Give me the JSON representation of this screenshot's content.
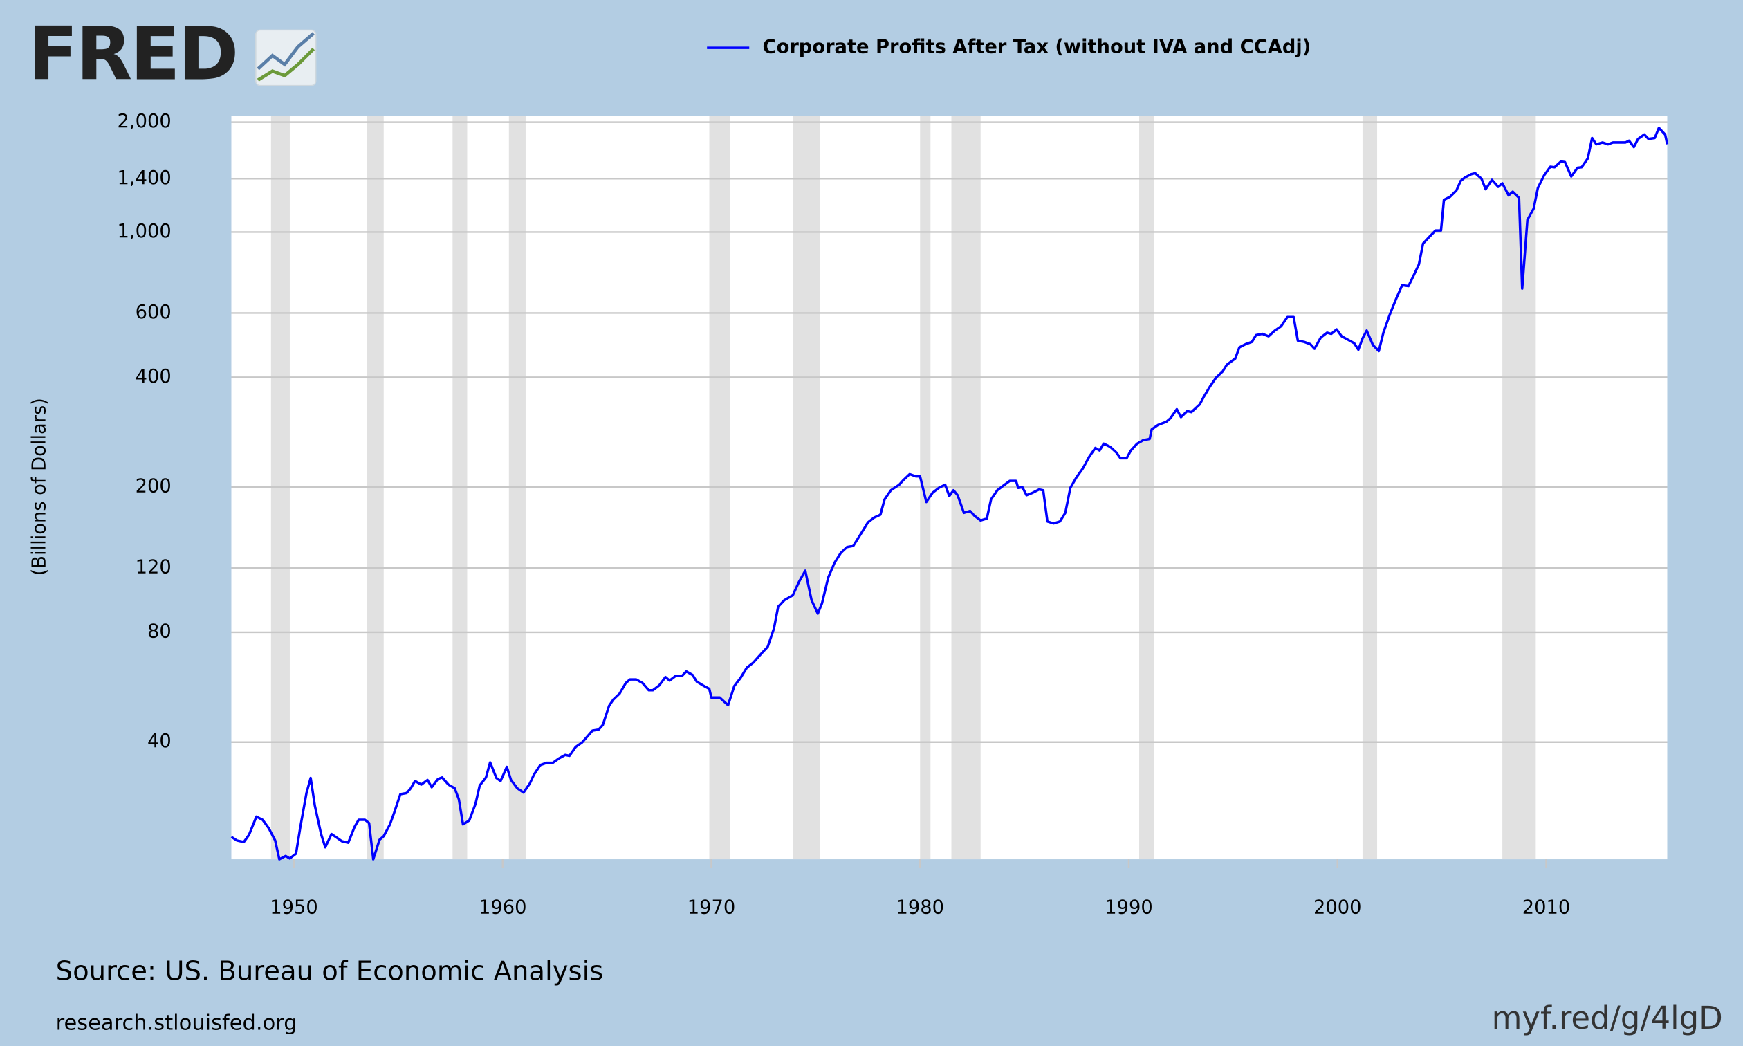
{
  "logo": "FRED",
  "source": "Source: US. Bureau of Economic Analysis",
  "site": "research.stlouisfed.org",
  "short_link": "myf.red/g/4lgD",
  "chart_data": {
    "type": "line",
    "y_label": "(Billions of Dollars)",
    "log_y": true,
    "grid": true,
    "xlim": [
      1947,
      2015.8
    ],
    "xticks": [
      1950,
      1960,
      1970,
      1980,
      1990,
      2000,
      2010
    ],
    "ylim": [
      19.1,
      2085
    ],
    "yticks": [
      {
        "value": 2000,
        "label": "2,000"
      },
      {
        "value": 1400,
        "label": "1,400"
      },
      {
        "value": 1000,
        "label": "1,000"
      },
      600,
      400,
      200,
      120,
      80,
      40
    ],
    "recessions": [
      [
        1948.9,
        1949.8
      ],
      [
        1953.5,
        1954.3
      ],
      [
        1957.6,
        1958.3
      ],
      [
        1960.3,
        1961.1
      ],
      [
        1969.9,
        1970.9
      ],
      [
        1973.9,
        1975.2
      ],
      [
        1980.0,
        1980.5
      ],
      [
        1981.5,
        1982.9
      ],
      [
        1990.5,
        1991.2
      ],
      [
        2001.2,
        2001.9
      ],
      [
        2007.9,
        2009.5
      ]
    ],
    "recession_color": "#e1e1e1",
    "series": [
      {
        "name": "Corporate Profits After Tax (without IVA and CCAdj)",
        "color": "#0000ff",
        "x": [
          1947.0,
          1947.27,
          1947.6,
          1947.85,
          1948.2,
          1948.5,
          1948.8,
          1949.1,
          1949.3,
          1949.6,
          1949.8,
          1950.1,
          1950.3,
          1950.6,
          1950.8,
          1951.0,
          1951.3,
          1951.5,
          1951.8,
          1952.1,
          1952.3,
          1952.6,
          1952.9,
          1953.1,
          1953.4,
          1953.6,
          1953.8,
          1954.1,
          1954.3,
          1954.6,
          1954.8,
          1955.1,
          1955.4,
          1955.6,
          1955.8,
          1956.1,
          1956.4,
          1956.6,
          1956.9,
          1957.1,
          1957.4,
          1957.7,
          1957.9,
          1958.1,
          1958.4,
          1958.7,
          1958.9,
          1959.2,
          1959.4,
          1959.7,
          1959.9,
          1960.2,
          1960.4,
          1960.7,
          1961.0,
          1961.3,
          1961.5,
          1961.8,
          1962.1,
          1962.4,
          1962.7,
          1963.0,
          1963.2,
          1963.5,
          1963.8,
          1964.0,
          1964.3,
          1964.6,
          1964.8,
          1965.1,
          1965.3,
          1965.6,
          1965.9,
          1966.1,
          1966.4,
          1966.7,
          1967.0,
          1967.2,
          1967.5,
          1967.8,
          1968.0,
          1968.3,
          1968.6,
          1968.8,
          1969.1,
          1969.3,
          1969.6,
          1969.9,
          1970.0,
          1970.4,
          1970.8,
          1971.1,
          1971.4,
          1971.7,
          1972.0,
          1972.4,
          1972.7,
          1973.0,
          1973.2,
          1973.5,
          1973.9,
          1974.2,
          1974.5,
          1974.8,
          1975.1,
          1975.3,
          1975.6,
          1975.9,
          1976.2,
          1976.5,
          1976.8,
          1977.2,
          1977.5,
          1977.8,
          1978.1,
          1978.3,
          1978.6,
          1979.0,
          1979.2,
          1979.5,
          1979.8,
          1980.0,
          1980.3,
          1980.6,
          1980.9,
          1981.2,
          1981.4,
          1981.6,
          1981.8,
          1982.1,
          1982.4,
          1982.6,
          1982.9,
          1983.2,
          1983.4,
          1983.7,
          1984.0,
          1984.3,
          1984.6,
          1984.7,
          1984.9,
          1985.1,
          1985.4,
          1985.7,
          1985.9,
          1986.1,
          1986.4,
          1986.7,
          1986.96,
          1987.2,
          1987.5,
          1987.8,
          1988.1,
          1988.4,
          1988.6,
          1988.8,
          1989.1,
          1989.4,
          1989.6,
          1989.9,
          1990.1,
          1990.4,
          1990.7,
          1991.0,
          1991.1,
          1991.4,
          1991.8,
          1992.0,
          1992.3,
          1992.5,
          1992.8,
          1993.0,
          1993.4,
          1993.6,
          1993.9,
          1994.2,
          1994.5,
          1994.7,
          1995.1,
          1995.3,
          1995.6,
          1995.9,
          1996.1,
          1996.4,
          1996.7,
          1997.0,
          1997.3,
          1997.6,
          1997.9,
          1998.1,
          1998.4,
          1998.7,
          1998.9,
          1999.2,
          1999.5,
          1999.7,
          1999.96,
          2000.2,
          2000.5,
          2000.8,
          2001.0,
          2001.2,
          2001.4,
          2001.7,
          2001.98,
          2002.2,
          2002.5,
          2002.8,
          2003.1,
          2003.4,
          2003.6,
          2003.9,
          2004.1,
          2004.4,
          2004.7,
          2004.96,
          2005.1,
          2005.4,
          2005.7,
          2005.9,
          2006.1,
          2006.4,
          2006.6,
          2006.9,
          2007.1,
          2007.4,
          2007.7,
          2007.9,
          2008.2,
          2008.4,
          2008.7,
          2008.85,
          2009.1,
          2009.4,
          2009.6,
          2009.9,
          2010.2,
          2010.4,
          2010.7,
          2010.9,
          2011.2,
          2011.5,
          2011.7,
          2011.99,
          2012.2,
          2012.4,
          2012.7,
          2012.96,
          2013.2,
          2013.5,
          2013.8,
          2013.97,
          2014.2,
          2014.4,
          2014.7,
          2014.9,
          2015.2,
          2015.4,
          2015.7,
          2015.8
        ],
        "values": [
          22.0,
          21.5,
          21.3,
          22.3,
          25.0,
          24.5,
          23.2,
          21.5,
          19.1,
          19.5,
          19.2,
          19.8,
          23.3,
          29.0,
          31.9,
          26.8,
          22.4,
          20.6,
          22.4,
          21.8,
          21.4,
          21.2,
          23.4,
          24.5,
          24.5,
          24.0,
          19.1,
          21.6,
          22.1,
          23.8,
          25.6,
          28.8,
          29.0,
          29.9,
          31.3,
          30.6,
          31.5,
          30.1,
          31.7,
          32.0,
          30.6,
          29.9,
          27.9,
          23.8,
          24.4,
          27.1,
          30.4,
          32.0,
          35.2,
          31.9,
          31.3,
          34.2,
          31.5,
          29.9,
          29.1,
          30.8,
          32.6,
          34.6,
          35.1,
          35.1,
          36.1,
          36.9,
          36.7,
          38.8,
          39.9,
          41.1,
          43.0,
          43.3,
          44.6,
          50.3,
          52.3,
          54.3,
          58.1,
          59.4,
          59.4,
          58.1,
          55.5,
          55.5,
          57.2,
          60.3,
          59.0,
          60.8,
          60.8,
          62.5,
          61.1,
          58.6,
          57.2,
          56.0,
          53,
          53,
          50.5,
          57,
          60,
          64,
          66,
          70,
          73,
          82,
          94,
          98,
          101,
          110,
          118,
          98,
          90,
          96,
          113,
          124,
          132,
          137,
          138,
          150,
          160,
          165,
          168,
          185,
          196,
          203,
          209,
          217,
          214,
          214,
          182,
          193,
          199,
          203,
          189,
          196,
          190,
          170,
          172,
          167,
          162,
          164,
          185,
          196,
          202,
          208,
          208,
          199,
          200,
          190,
          193,
          197,
          196,
          161,
          159,
          161,
          170,
          199,
          213,
          225,
          242,
          256,
          252,
          263,
          258,
          249,
          240,
          240,
          252,
          263,
          269,
          271,
          288,
          296,
          302,
          309,
          327,
          311,
          323,
          321,
          337,
          354,
          378,
          400,
          415,
          433,
          450,
          483,
          493,
          500,
          522,
          526,
          518,
          537,
          552,
          585,
          585,
          504,
          500,
          493,
          479,
          514,
          530,
          526,
          541,
          518,
          507,
          496,
          476,
          511,
          537,
          490,
          472,
          530,
          593,
          654,
          715,
          711,
          750,
          815,
          930,
          970,
          1010,
          1010,
          1225,
          1250,
          1300,
          1380,
          1410,
          1440,
          1450,
          1400,
          1310,
          1390,
          1330,
          1360,
          1260,
          1290,
          1240,
          700,
          1080,
          1160,
          1320,
          1430,
          1510,
          1505,
          1560,
          1555,
          1420,
          1500,
          1505,
          1590,
          1810,
          1740,
          1760,
          1740,
          1760,
          1760,
          1760,
          1780,
          1710,
          1800,
          1850,
          1800,
          1810,
          1930,
          1850,
          1740
        ]
      }
    ]
  }
}
